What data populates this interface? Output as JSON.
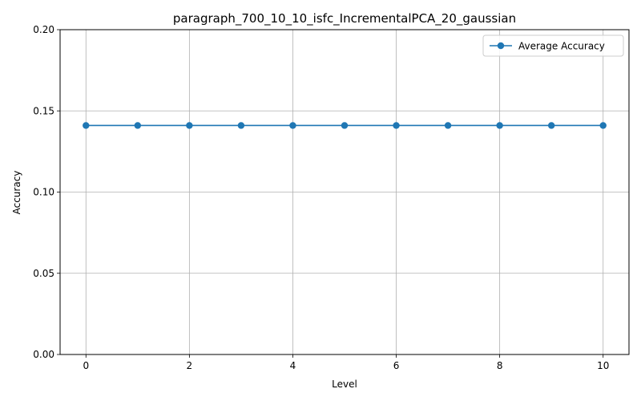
{
  "chart_data": {
    "type": "line",
    "title": "paragraph_700_10_10_isfc_IncrementalPCA_20_gaussian",
    "xlabel": "Level",
    "ylabel": "Accuracy",
    "x": [
      0,
      1,
      2,
      3,
      4,
      5,
      6,
      7,
      8,
      9,
      10
    ],
    "series": [
      {
        "name": "Average Accuracy",
        "values": [
          0.141,
          0.141,
          0.141,
          0.141,
          0.141,
          0.141,
          0.141,
          0.141,
          0.141,
          0.141,
          0.141
        ],
        "color": "#1f77b4",
        "marker": "circle"
      }
    ],
    "xlim": [
      -0.5,
      10.5
    ],
    "ylim": [
      0,
      0.2
    ],
    "xticks": [
      "0",
      "2",
      "4",
      "6",
      "8",
      "10"
    ],
    "yticks": [
      "0.00",
      "0.05",
      "0.10",
      "0.15",
      "0.20"
    ],
    "grid": true,
    "legend_position": "upper right"
  }
}
